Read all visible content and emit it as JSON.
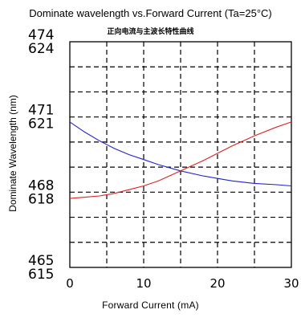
{
  "chart_data": {
    "type": "line",
    "title": "Dominate wavelength vs.Forward Current (Ta=25°C)",
    "subtitle": "正向电流与主波长特性曲线",
    "xlabel": "Forward  Current  (mA)",
    "ylabel": "Dominate Wavelength  (nm)",
    "xlim": [
      0,
      30
    ],
    "x_ticks": [
      "0",
      "10",
      "20",
      "30"
    ],
    "y_ticks": [
      {
        "top": "474",
        "bottom": "624"
      },
      {
        "top": "471",
        "bottom": "621"
      },
      {
        "top": "468",
        "bottom": "618"
      },
      {
        "top": "465",
        "bottom": "615"
      }
    ],
    "ylim_lower": [
      465,
      474
    ],
    "ylim_upper": [
      615,
      624
    ],
    "grid": true,
    "series": [
      {
        "color": "#2222cc",
        "axis": "upper",
        "x": [
          0,
          2,
          4,
          6,
          8,
          10,
          12,
          15,
          18,
          20,
          22,
          25,
          28,
          30
        ],
        "y": [
          620.8,
          620.4,
          620.05,
          619.75,
          619.5,
          619.3,
          619.1,
          618.85,
          618.65,
          618.55,
          618.45,
          618.35,
          618.3,
          618.25
        ]
      },
      {
        "color": "#dd2222",
        "axis": "lower",
        "x": [
          0,
          2,
          4,
          6,
          8,
          10,
          12,
          15,
          18,
          20,
          22,
          25,
          28,
          30
        ],
        "y": [
          467.75,
          467.8,
          467.85,
          467.95,
          468.1,
          468.25,
          468.45,
          468.85,
          469.25,
          469.55,
          469.85,
          470.25,
          470.6,
          470.8
        ]
      }
    ]
  }
}
